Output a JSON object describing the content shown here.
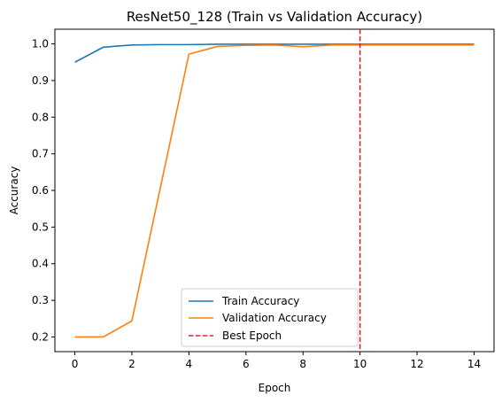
{
  "chart_data": {
    "type": "line",
    "title": "ResNet50_128 (Train vs Validation Accuracy)",
    "xlabel": "Epoch",
    "ylabel": "Accuracy",
    "xlim": [
      -0.7,
      14.7
    ],
    "ylim": [
      0.16,
      1.04
    ],
    "xticks": [
      0,
      2,
      4,
      6,
      8,
      10,
      12,
      14
    ],
    "yticks": [
      0.2,
      0.3,
      0.4,
      0.5,
      0.6,
      0.7,
      0.8,
      0.9,
      1.0
    ],
    "ytick_labels": [
      "0.2",
      "0.3",
      "0.4",
      "0.5",
      "0.6",
      "0.7",
      "0.8",
      "0.9",
      "1.0"
    ],
    "grid": false,
    "legend_position": "lower-center",
    "x": [
      0,
      1,
      2,
      3,
      4,
      5,
      6,
      7,
      8,
      9,
      10,
      11,
      12,
      13,
      14
    ],
    "series": [
      {
        "name": "Train Accuracy",
        "color": "#1f77b4",
        "values": [
          0.95,
          0.991,
          0.997,
          0.998,
          0.998,
          0.999,
          0.999,
          0.999,
          0.999,
          0.999,
          0.999,
          0.999,
          0.999,
          0.999,
          0.999
        ]
      },
      {
        "name": "Validation Accuracy",
        "color": "#ff7f0e",
        "values": [
          0.2,
          0.2,
          0.244,
          0.608,
          0.972,
          0.993,
          0.996,
          0.997,
          0.992,
          0.997,
          0.997,
          0.997,
          0.997,
          0.997,
          0.997
        ]
      }
    ],
    "best_epoch": {
      "name": "Best Epoch",
      "value": 10,
      "color": "#d62728"
    }
  }
}
